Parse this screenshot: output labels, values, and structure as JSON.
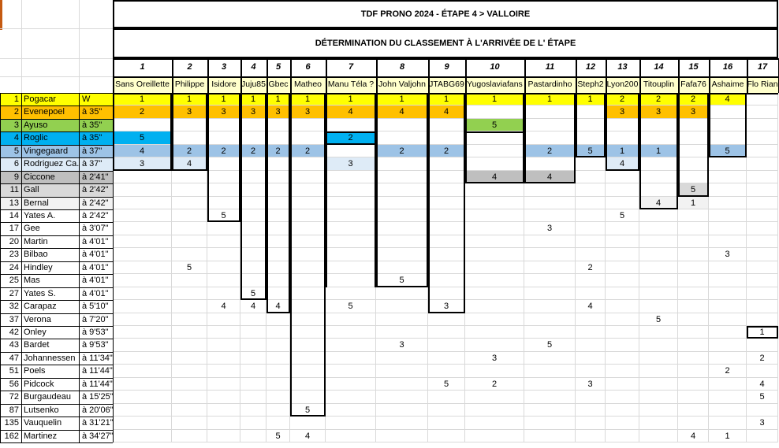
{
  "header": {
    "title": "TDF PRONO 2024  - ÉTAPE 4 > VALLOIRE",
    "subtitle": "DÉTERMINATION DU CLASSEMENT À L'ARRIVÉE DE L' ÉTAPE"
  },
  "players": [
    {
      "num": "1",
      "name": "Sans Oreillette"
    },
    {
      "num": "2",
      "name": "Philippe"
    },
    {
      "num": "3",
      "name": "Isidore"
    },
    {
      "num": "4",
      "name": "Juju85"
    },
    {
      "num": "5",
      "name": "Gbec"
    },
    {
      "num": "6",
      "name": "Matheo"
    },
    {
      "num": "7",
      "name": "Manu Téla ?"
    },
    {
      "num": "8",
      "name": "John Valjohn"
    },
    {
      "num": "9",
      "name": "JTABG69"
    },
    {
      "num": "10",
      "name": "Yugoslaviafans"
    },
    {
      "num": "11",
      "name": "Pastardinho"
    },
    {
      "num": "12",
      "name": "Steph2"
    },
    {
      "num": "13",
      "name": "Lyon200"
    },
    {
      "num": "14",
      "name": "Titouplin"
    },
    {
      "num": "15",
      "name": "Fafa76"
    },
    {
      "num": "16",
      "name": "Ashaime"
    },
    {
      "num": "17",
      "name": "Flo Rian"
    }
  ],
  "riders": [
    {
      "rank": "1",
      "name": "Pogacar",
      "gap": "W",
      "row_color": "#FFFF00",
      "picks": {
        "1": "1",
        "2": "1",
        "3": "1",
        "4": "1",
        "5": "1",
        "6": "1",
        "7": "1",
        "8": "1",
        "9": "1",
        "10": "1",
        "11": "1",
        "12": "1",
        "13": "2",
        "14": "2",
        "15": "2",
        "16": "4"
      }
    },
    {
      "rank": "2",
      "name": "Evenepoel",
      "gap": "à 35\"",
      "row_color": "#FFC000",
      "picks": {
        "1": "2",
        "2": "3",
        "3": "3",
        "4": "3",
        "5": "3",
        "6": "3",
        "7": "4",
        "8": "4",
        "9": "4",
        "13": "3",
        "14": "3",
        "15": "3"
      }
    },
    {
      "rank": "3",
      "name": "Ayuso",
      "gap": "à 35\"",
      "row_color": "#92D050",
      "picks": {
        "10": "5"
      }
    },
    {
      "rank": "4",
      "name": "Roglic",
      "gap": "à 35\"",
      "row_color": "#00B0F0",
      "picks": {
        "1": "5",
        "7": "2"
      }
    },
    {
      "rank": "5",
      "name": "Vingegaard",
      "gap": "à 37\"",
      "row_color": "#9DC3E6",
      "picks": {
        "1": "4",
        "2": "2",
        "3": "2",
        "4": "2",
        "5": "2",
        "6": "2",
        "8": "2",
        "9": "2",
        "11": "2",
        "12": "5",
        "13": "1",
        "14": "1",
        "16": "5"
      }
    },
    {
      "rank": "6",
      "name": "Rodriguez Ca.",
      "gap": "à 37\"",
      "row_color": "#DEEBF7",
      "picks": {
        "1": "3",
        "2": "4",
        "7": "3",
        "13": "4"
      }
    },
    {
      "rank": "9",
      "name": "Ciccone",
      "gap": "à 2'41\"",
      "row_color": "#BFBFBF",
      "picks": {
        "10": "4",
        "11": "4"
      }
    },
    {
      "rank": "11",
      "name": "Gall",
      "gap": "à 2'42\"",
      "row_color": "#D9D9D9",
      "picks": {
        "15": "5"
      }
    },
    {
      "rank": "13",
      "name": "Bernal",
      "gap": "à 2'42\"",
      "row_color": "#F2F2F2",
      "picks": {
        "14": "4",
        "15": "1"
      }
    },
    {
      "rank": "14",
      "name": "Yates A.",
      "gap": "à 2'42\"",
      "row_color": "#FFFFFF",
      "picks": {
        "3": "5",
        "13": "5"
      }
    },
    {
      "rank": "17",
      "name": "Gee",
      "gap": "à 3'07\"",
      "row_color": "#FFFFFF",
      "picks": {
        "11": "3"
      }
    },
    {
      "rank": "20",
      "name": "Martin",
      "gap": "à 4'01\"",
      "row_color": "#FFFFFF",
      "picks": {}
    },
    {
      "rank": "23",
      "name": "Bilbao",
      "gap": "à 4'01\"",
      "row_color": "#FFFFFF",
      "picks": {
        "16": "3"
      }
    },
    {
      "rank": "24",
      "name": "Hindley",
      "gap": "à 4'01\"",
      "row_color": "#FFFFFF",
      "picks": {
        "2": "5",
        "12": "2"
      }
    },
    {
      "rank": "25",
      "name": "Mas",
      "gap": "à 4'01\"",
      "row_color": "#FFFFFF",
      "picks": {
        "8": "5"
      }
    },
    {
      "rank": "27",
      "name": "Yates S.",
      "gap": "à 4'01\"",
      "row_color": "#FFFFFF",
      "picks": {
        "4": "5"
      }
    },
    {
      "rank": "32",
      "name": "Carapaz",
      "gap": "à 5'10\"",
      "row_color": "#FFFFFF",
      "picks": {
        "3": "4",
        "4": "4",
        "5": "4",
        "7": "5",
        "9": "3",
        "12": "4"
      }
    },
    {
      "rank": "37",
      "name": "Verona",
      "gap": "à 7'20\"",
      "row_color": "#FFFFFF",
      "picks": {
        "14": "5"
      }
    },
    {
      "rank": "42",
      "name": "Onley",
      "gap": "à 9'53\"",
      "row_color": "#FFFFFF",
      "picks": {
        "17": "1"
      }
    },
    {
      "rank": "43",
      "name": "Bardet",
      "gap": "à 9'53\"",
      "row_color": "#FFFFFF",
      "picks": {
        "8": "3",
        "11": "5"
      }
    },
    {
      "rank": "47",
      "name": "Johannessen",
      "gap": "à 11'34\"",
      "row_color": "#FFFFFF",
      "picks": {
        "10": "3",
        "17": "2"
      }
    },
    {
      "rank": "51",
      "name": "Poels",
      "gap": "à 11'44\"",
      "row_color": "#FFFFFF",
      "picks": {
        "16": "2"
      }
    },
    {
      "rank": "56",
      "name": "Pidcock",
      "gap": "à 11'44\"",
      "row_color": "#FFFFFF",
      "picks": {
        "9": "5",
        "10": "2",
        "12": "3",
        "17": "4"
      }
    },
    {
      "rank": "72",
      "name": "Burgaudeau",
      "gap": "à 15'25\"",
      "row_color": "#FFFFFF",
      "picks": {
        "17": "5"
      }
    },
    {
      "rank": "87",
      "name": "Lutsenko",
      "gap": "à 20'06\"",
      "row_color": "#FFFFFF",
      "picks": {
        "6": "5"
      }
    },
    {
      "rank": "135",
      "name": "Vauquelin",
      "gap": "à 31'21\"",
      "row_color": "#FFFFFF",
      "picks": {
        "17": "3"
      }
    },
    {
      "rank": "162",
      "name": "Martinez",
      "gap": "à 34'27\"",
      "row_color": "#FFFFFF",
      "picks": {
        "5": "5",
        "6": "4",
        "15": "4",
        "16": "1"
      }
    }
  ],
  "colors": {
    "names_header_bg": "#FFFFCC",
    "gridline": "#D9D9D9",
    "heavy_border": "#000000",
    "corner_accent": "#C55A11"
  }
}
